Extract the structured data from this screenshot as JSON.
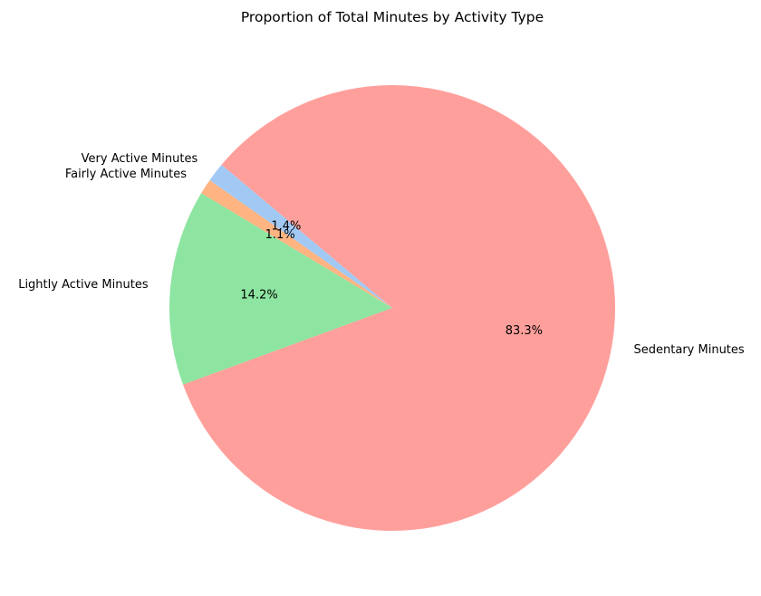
{
  "chart_data": {
    "type": "pie",
    "title": "Proportion of Total Minutes by Activity Type",
    "slices": [
      {
        "label": "Very Active Minutes",
        "value": 1.4,
        "pct_label": "1.4%",
        "color": "#a1c9f4"
      },
      {
        "label": "Fairly Active Minutes",
        "value": 1.1,
        "pct_label": "1.1%",
        "color": "#ffb482"
      },
      {
        "label": "Lightly Active Minutes",
        "value": 14.2,
        "pct_label": "14.2%",
        "color": "#8de5a1"
      },
      {
        "label": "Sedentary Minutes",
        "value": 83.3,
        "pct_label": "83.3%",
        "color": "#ff9f9b"
      }
    ],
    "start_angle_deg": 140,
    "direction": "counterclockwise",
    "legend": "none"
  }
}
